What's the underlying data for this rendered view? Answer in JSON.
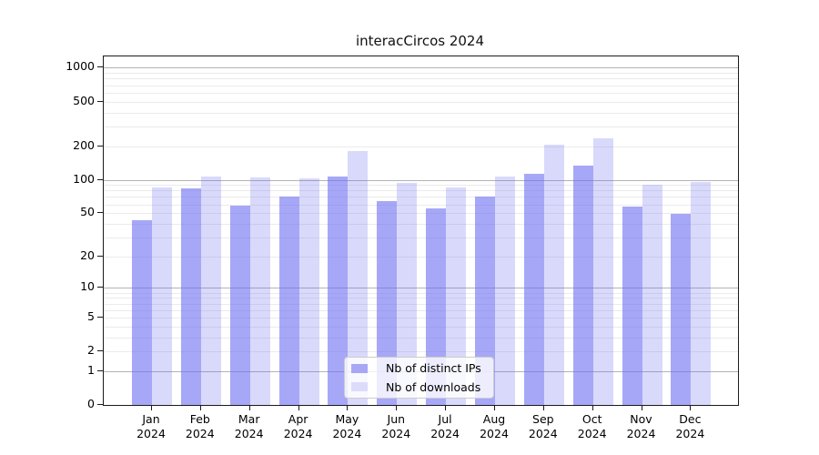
{
  "title": "interacCircos 2024",
  "chart_data": {
    "type": "bar",
    "title": "interacCircos 2024",
    "x_tick_months": [
      "Jan",
      "Feb",
      "Mar",
      "Apr",
      "May",
      "Jun",
      "Jul",
      "Aug",
      "Sep",
      "Oct",
      "Nov",
      "Dec"
    ],
    "x_tick_year": "2024",
    "categories": [
      "Jan 2024",
      "Feb 2024",
      "Mar 2024",
      "Apr 2024",
      "May 2024",
      "Jun 2024",
      "Jul 2024",
      "Aug 2024",
      "Sep 2024",
      "Oct 2024",
      "Nov 2024",
      "Dec 2024"
    ],
    "series": [
      {
        "name": "Nb of distinct IPs",
        "fill": "rgba(108,108,242,0.60)",
        "legend_fill": "#a7a7f5",
        "values": [
          43,
          84,
          58,
          70,
          107,
          64,
          55,
          70,
          112,
          134,
          57,
          49
        ]
      },
      {
        "name": "Nb of downloads",
        "fill": "rgba(108,108,242,0.26)",
        "legend_fill": "#dcdcfa",
        "values": [
          85,
          107,
          104,
          103,
          180,
          94,
          85,
          106,
          207,
          235,
          91,
          95
        ]
      }
    ],
    "y_ticks": [
      0,
      1,
      2,
      5,
      10,
      20,
      50,
      100,
      200,
      500,
      1000
    ],
    "y_scale": "log1p",
    "ylim": [
      0,
      1260
    ],
    "grid": "horizontal",
    "grid_major_at": [
      1,
      10,
      100,
      1000
    ],
    "legend_position": "lower center"
  },
  "colors": {
    "bar_dark_composite": "#a7a7f5",
    "bar_light_composite": "#dcdcfa",
    "grid_major": "#b3b3b3",
    "grid_minor": "#ebebeb",
    "spine": "#1a1a1a",
    "background": "#ffffff",
    "text": "#000000"
  }
}
